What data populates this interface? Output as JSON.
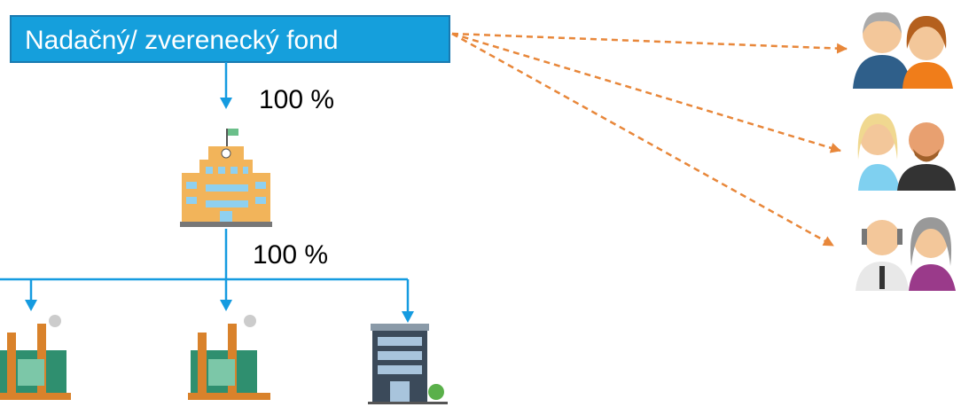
{
  "header": {
    "title": "Nadačný/ zverenecký fond"
  },
  "edges": [
    {
      "label": "100 %"
    },
    {
      "label": "100 %"
    }
  ]
}
